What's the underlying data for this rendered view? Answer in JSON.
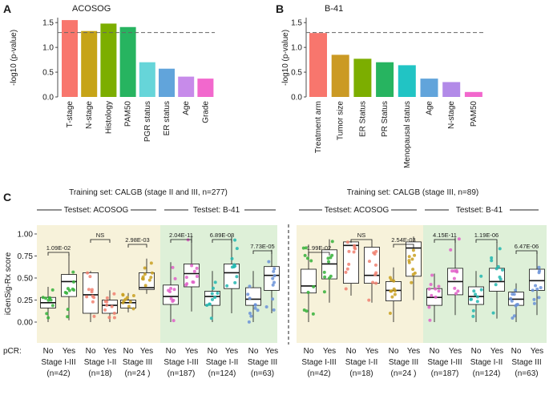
{
  "colors": {
    "acosog_bg": "#f7f2da",
    "b41_bg": "#def0d8",
    "green": "#35b23a",
    "pink": "#e060c8",
    "salmon": "#f08070",
    "gold": "#c9a020",
    "teal": "#22b7b0",
    "blue": "#6a92d8"
  },
  "panels": {
    "A": {
      "letter": "A",
      "title": "ACOSOG"
    },
    "B": {
      "letter": "B",
      "title": "B-41"
    },
    "C": {
      "letter": "C",
      "left_group_title": "Training set: CALGB (stage II and III, n=277)",
      "right_group_title": "Training set: CALGB (stage III, n=89)",
      "testset_acosog": "Testset: ACOSOG",
      "testset_b41": "Testset: B-41",
      "pcr_label": "pCR:",
      "no_label": "No",
      "yes_label": "Yes"
    }
  },
  "chart_data": [
    {
      "panel": "A",
      "type": "bar",
      "title": "ACOSOG",
      "ylabel": "-log10 (p-value)",
      "ylim": [
        0,
        1.6
      ],
      "yticks": [
        "0.0",
        "0.5",
        "1.0",
        "1.5"
      ],
      "reference_line": 1.3,
      "categories": [
        "T-stage",
        "N-stage",
        "Histology",
        "PAM50",
        "PGR status",
        "ER status",
        "Age",
        "Grade"
      ],
      "values": [
        1.55,
        1.33,
        1.48,
        1.41,
        0.7,
        0.57,
        0.41,
        0.37
      ],
      "colors": [
        "#f8766d",
        "#c6a417",
        "#7cae00",
        "#27b460",
        "#66d5d9",
        "#61a4db",
        "#c78bea",
        "#f268cd"
      ]
    },
    {
      "panel": "B",
      "type": "bar",
      "title": "B-41",
      "ylabel": "-log10 (p-value)",
      "ylim": [
        0,
        1.6
      ],
      "yticks": [
        "0.0",
        "0.5",
        "1.0",
        "1.5"
      ],
      "reference_line": 1.3,
      "categories": [
        "Treatment arm",
        "Tumor size",
        "ER Status",
        "PR Status",
        "Menopausal status",
        "Age",
        "N-stage",
        "PAM50"
      ],
      "values": [
        1.29,
        0.85,
        0.77,
        0.7,
        0.64,
        0.37,
        0.3,
        0.1
      ],
      "colors": [
        "#f8766d",
        "#cb9a24",
        "#7cae00",
        "#27b460",
        "#21c4c4",
        "#61a4db",
        "#b28ae8",
        "#f268cd"
      ]
    },
    {
      "panel": "C-left",
      "type": "box",
      "title": "Training set: CALGB (stage II and III, n=277)",
      "ylabel": "iGenSig-Rx score",
      "ylim": [
        0,
        1.0
      ],
      "yticks": [
        "0.00",
        "0.25",
        "0.50",
        "0.75",
        "1.00"
      ],
      "categories": [
        "No",
        "Yes",
        "No",
        "Yes",
        "No",
        "Yes",
        "No",
        "Yes",
        "No",
        "Yes",
        "No",
        "Yes"
      ],
      "groups": [
        {
          "label": "Stage I-III",
          "n": "(n=42)",
          "testset": "ACOSOG",
          "color": "#35b23a",
          "pvalue": "1.09E-02"
        },
        {
          "label": "Stage I-II",
          "n": "(n=18)",
          "testset": "ACOSOG",
          "color": "#f08070",
          "pvalue": "NS"
        },
        {
          "label": "Stage III",
          "n": "(n=24 )",
          "testset": "ACOSOG",
          "color": "#c9a020",
          "pvalue": "2.98E-03"
        },
        {
          "label": "Stage I-III",
          "n": "(n=187)",
          "testset": "B-41",
          "color": "#e060c8",
          "pvalue": "2.04E-11"
        },
        {
          "label": "Stage I-II",
          "n": "(n=124)",
          "testset": "B-41",
          "color": "#22b7b0",
          "pvalue": "6.89E-08"
        },
        {
          "label": "Stage III",
          "n": "(n=63)",
          "testset": "B-41",
          "color": "#6a92d8",
          "pvalue": "7.73E-05"
        }
      ],
      "boxes": [
        {
          "q1": 0.16,
          "median": 0.22,
          "q3": 0.28,
          "lo": 0.0,
          "hi": 0.4
        },
        {
          "q1": 0.29,
          "median": 0.46,
          "q3": 0.54,
          "lo": 0.02,
          "hi": 0.77
        },
        {
          "q1": 0.1,
          "median": 0.31,
          "q3": 0.56,
          "lo": 0.0,
          "hi": 0.58
        },
        {
          "q1": 0.1,
          "median": 0.19,
          "q3": 0.25,
          "lo": 0.0,
          "hi": 0.36
        },
        {
          "q1": 0.16,
          "median": 0.22,
          "q3": 0.25,
          "lo": 0.11,
          "hi": 0.33
        },
        {
          "q1": 0.37,
          "median": 0.39,
          "q3": 0.56,
          "lo": 0.32,
          "hi": 0.72
        },
        {
          "q1": 0.2,
          "median": 0.29,
          "q3": 0.42,
          "lo": 0.0,
          "hi": 0.68
        },
        {
          "q1": 0.4,
          "median": 0.55,
          "q3": 0.66,
          "lo": 0.12,
          "hi": 0.98
        },
        {
          "q1": 0.19,
          "median": 0.29,
          "q3": 0.35,
          "lo": 0.0,
          "hi": 0.58
        },
        {
          "q1": 0.38,
          "median": 0.56,
          "q3": 0.66,
          "lo": 0.1,
          "hi": 0.97
        },
        {
          "q1": 0.19,
          "median": 0.26,
          "q3": 0.39,
          "lo": 0.0,
          "hi": 0.58
        },
        {
          "q1": 0.36,
          "median": 0.53,
          "q3": 0.63,
          "lo": 0.1,
          "hi": 0.82
        }
      ]
    },
    {
      "panel": "C-right",
      "type": "box",
      "title": "Training set: CALGB (stage III, n=89)",
      "ylabel": "",
      "ylim": [
        0,
        1.0
      ],
      "categories": [
        "No",
        "Yes",
        "No",
        "Yes",
        "No",
        "Yes",
        "No",
        "Yes",
        "No",
        "Yes",
        "No",
        "Yes"
      ],
      "groups": [
        {
          "label": "Stage I-III",
          "n": "(n=42)",
          "testset": "ACOSOG",
          "color": "#35b23a",
          "pvalue": "1.99E-02"
        },
        {
          "label": "Stage I-II",
          "n": "(n=18)",
          "testset": "ACOSOG",
          "color": "#f08070",
          "pvalue": "NS"
        },
        {
          "label": "Stage III",
          "n": "(n=24 )",
          "testset": "ACOSOG",
          "color": "#c9a020",
          "pvalue": "2.54E-03"
        },
        {
          "label": "Stage I-III",
          "n": "(n=187)",
          "testset": "B-41",
          "color": "#e060c8",
          "pvalue": "4.15E-11"
        },
        {
          "label": "Stage I-II",
          "n": "(n=124)",
          "testset": "B-41",
          "color": "#22b7b0",
          "pvalue": "1.19E-06"
        },
        {
          "label": "Stage III",
          "n": "(n=63)",
          "testset": "B-41",
          "color": "#6a92d8",
          "pvalue": "6.47E-06"
        }
      ],
      "boxes": [
        {
          "q1": 0.33,
          "median": 0.41,
          "q3": 0.6,
          "lo": 0.0,
          "hi": 0.88
        },
        {
          "q1": 0.49,
          "median": 0.66,
          "q3": 0.82,
          "lo": 0.22,
          "hi": 0.94
        },
        {
          "q1": 0.44,
          "median": 0.87,
          "q3": 0.91,
          "lo": 0.3,
          "hi": 0.92
        },
        {
          "q1": 0.44,
          "median": 0.53,
          "q3": 0.85,
          "lo": 0.22,
          "hi": 0.9
        },
        {
          "q1": 0.24,
          "median": 0.36,
          "q3": 0.46,
          "lo": 0.0,
          "hi": 0.62
        },
        {
          "q1": 0.52,
          "median": 0.84,
          "q3": 0.91,
          "lo": 0.25,
          "hi": 0.97
        },
        {
          "q1": 0.19,
          "median": 0.28,
          "q3": 0.38,
          "lo": 0.0,
          "hi": 0.55
        },
        {
          "q1": 0.31,
          "median": 0.46,
          "q3": 0.61,
          "lo": 0.08,
          "hi": 0.96
        },
        {
          "q1": 0.2,
          "median": 0.29,
          "q3": 0.4,
          "lo": 0.0,
          "hi": 0.58
        },
        {
          "q1": 0.35,
          "median": 0.46,
          "q3": 0.61,
          "lo": 0.04,
          "hi": 0.91
        },
        {
          "q1": 0.19,
          "median": 0.26,
          "q3": 0.34,
          "lo": 0.0,
          "hi": 0.44
        },
        {
          "q1": 0.36,
          "median": 0.47,
          "q3": 0.6,
          "lo": 0.08,
          "hi": 0.8
        }
      ]
    }
  ]
}
